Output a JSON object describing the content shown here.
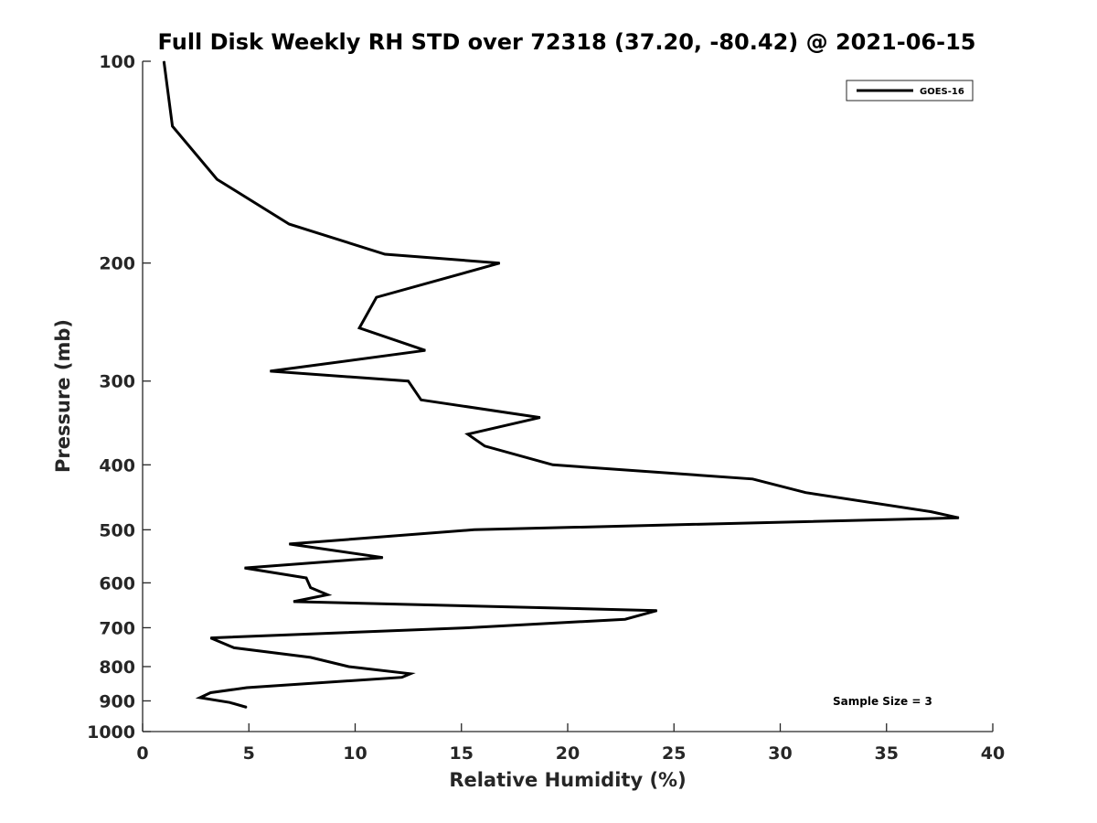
{
  "chart_data": {
    "type": "line",
    "title": "Full Disk Weekly RH STD over 72318 (37.20, -80.42) @ 2021-06-15",
    "xlabel": "Relative Humidity (%)",
    "ylabel": "Pressure (mb)",
    "xlim": [
      0,
      40
    ],
    "ylim": [
      100,
      1000
    ],
    "y_scale": "log",
    "y_reversed": true,
    "x_ticks": [
      "0",
      "5",
      "10",
      "15",
      "20",
      "25",
      "30",
      "35",
      "40"
    ],
    "y_ticks": [
      "100",
      "200",
      "300",
      "400",
      "500",
      "600",
      "700",
      "800",
      "900",
      "1000"
    ],
    "grid": false,
    "legend_position": "top-right",
    "annotation": "Sample Size = 3",
    "series": [
      {
        "name": "GOES-16",
        "color": "#000000",
        "points": [
          [
            1.0,
            100
          ],
          [
            1.4,
            125
          ],
          [
            3.5,
            150
          ],
          [
            6.9,
            175
          ],
          [
            11.4,
            194
          ],
          [
            16.8,
            200
          ],
          [
            11.0,
            225
          ],
          [
            10.2,
            250
          ],
          [
            13.3,
            270
          ],
          [
            6.0,
            290
          ],
          [
            12.5,
            300
          ],
          [
            13.1,
            320
          ],
          [
            18.7,
            340
          ],
          [
            15.3,
            360
          ],
          [
            16.1,
            375
          ],
          [
            19.3,
            400
          ],
          [
            28.7,
            420
          ],
          [
            31.2,
            440
          ],
          [
            37.1,
            470
          ],
          [
            38.4,
            480
          ],
          [
            15.6,
            500
          ],
          [
            6.9,
            525
          ],
          [
            11.3,
            550
          ],
          [
            4.8,
            570
          ],
          [
            7.7,
            590
          ],
          [
            7.9,
            610
          ],
          [
            8.7,
            625
          ],
          [
            7.1,
            640
          ],
          [
            24.2,
            660
          ],
          [
            22.7,
            680
          ],
          [
            15.3,
            700
          ],
          [
            3.2,
            725
          ],
          [
            4.3,
            750
          ],
          [
            7.9,
            775
          ],
          [
            9.7,
            800
          ],
          [
            12.6,
            820
          ],
          [
            12.2,
            830
          ],
          [
            4.9,
            860
          ],
          [
            3.2,
            875
          ],
          [
            2.7,
            890
          ],
          [
            4.1,
            905
          ],
          [
            4.9,
            920
          ]
        ]
      }
    ]
  }
}
